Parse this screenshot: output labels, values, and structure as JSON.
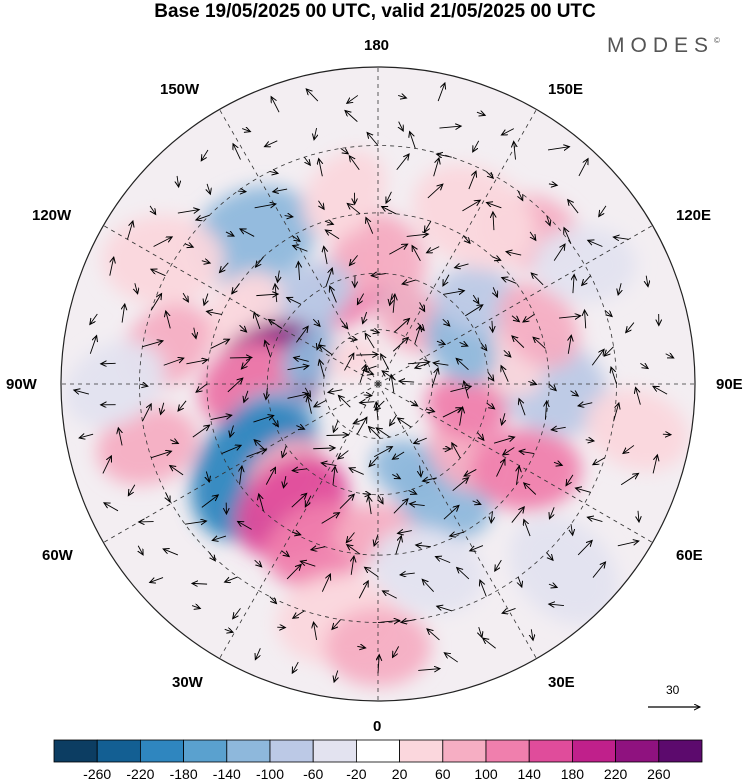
{
  "title": "Base 19/05/2025 00 UTC, valid 21/05/2025 00 UTC",
  "brand": "MODES",
  "brand_mark": "©",
  "lon_labels": {
    "n180": "180",
    "w150": "150W",
    "e150": "150E",
    "w120": "120W",
    "e120": "120E",
    "w90": "90W",
    "e90": "90E",
    "w60": "60W",
    "e60": "60E",
    "w30": "30W",
    "e30": "30E",
    "s0": "0"
  },
  "reference_vector": {
    "label": "30"
  },
  "colorbar": {
    "ticks": [
      "-260",
      "-220",
      "-180",
      "-140",
      "-100",
      "-60",
      "-20",
      "20",
      "60",
      "100",
      "140",
      "180",
      "220",
      "260"
    ],
    "colors": [
      "#0c3d62",
      "#135f93",
      "#2f86bf",
      "#5aa1cf",
      "#8eb8dc",
      "#bcc9e6",
      "#e3e3f0",
      "#ffffff",
      "#fbd7dd",
      "#f6aec3",
      "#f07fad",
      "#e04c9b",
      "#c0208b",
      "#8f127f",
      "#5c0a6d"
    ]
  },
  "anomaly_cells": [
    {
      "lon": 163,
      "lat": 67,
      "v": -160,
      "r": 22
    },
    {
      "lon": 150,
      "lat": 70,
      "v": 60,
      "r": 30
    },
    {
      "lon": 175,
      "lat": 55,
      "v": 80,
      "r": 30
    },
    {
      "lon": -160,
      "lat": 63,
      "v": 120,
      "r": 32
    },
    {
      "lon": -175,
      "lat": 55,
      "v": 60,
      "r": 30
    },
    {
      "lon": 135,
      "lat": 35,
      "v": 60,
      "r": 30
    },
    {
      "lon": -140,
      "lat": 40,
      "v": -140,
      "r": 40
    },
    {
      "lon": -130,
      "lat": 60,
      "v": -120,
      "r": 30
    },
    {
      "lon": -145,
      "lat": 60,
      "v": -100,
      "r": 28
    },
    {
      "lon": -120,
      "lat": 28,
      "v": 40,
      "r": 35
    },
    {
      "lon": -118,
      "lat": 50,
      "v": 50,
      "r": 30
    },
    {
      "lon": -100,
      "lat": 35,
      "v": 80,
      "r": 30
    },
    {
      "lon": -95,
      "lat": 60,
      "v": 220,
      "r": 45
    },
    {
      "lon": -90,
      "lat": 55,
      "v": 120,
      "r": 35
    },
    {
      "lon": -70,
      "lat": 60,
      "v": -140,
      "r": 30
    },
    {
      "lon": -110,
      "lat": 70,
      "v": -120,
      "r": 24
    },
    {
      "lon": -135,
      "lat": 80,
      "v": 40,
      "r": 22
    },
    {
      "lon": -55,
      "lat": 50,
      "v": -200,
      "r": 50
    },
    {
      "lon": -45,
      "lat": 55,
      "v": 60,
      "r": 30
    },
    {
      "lon": -35,
      "lat": 50,
      "v": 140,
      "r": 40
    },
    {
      "lon": -20,
      "lat": 45,
      "v": 100,
      "r": 35
    },
    {
      "lon": -10,
      "lat": 30,
      "v": 40,
      "r": 35
    },
    {
      "lon": -75,
      "lat": 30,
      "v": 80,
      "r": 30
    },
    {
      "lon": 0,
      "lat": 50,
      "v": 60,
      "r": 28
    },
    {
      "lon": 20,
      "lat": 65,
      "v": -120,
      "r": 28
    },
    {
      "lon": 30,
      "lat": 55,
      "v": -140,
      "r": 35
    },
    {
      "lon": 15,
      "lat": 40,
      "v": -40,
      "r": 35
    },
    {
      "lon": 50,
      "lat": 60,
      "v": 80,
      "r": 28
    },
    {
      "lon": 60,
      "lat": 45,
      "v": 120,
      "r": 35
    },
    {
      "lon": 90,
      "lat": 45,
      "v": -100,
      "r": 40
    },
    {
      "lon": 100,
      "lat": 55,
      "v": 40,
      "r": 28
    },
    {
      "lon": 75,
      "lat": 65,
      "v": 100,
      "r": 30
    },
    {
      "lon": 115,
      "lat": 65,
      "v": -140,
      "r": 30
    },
    {
      "lon": 130,
      "lat": 55,
      "v": -100,
      "r": 30
    },
    {
      "lon": 110,
      "lat": 45,
      "v": 60,
      "r": 30
    },
    {
      "lon": 120,
      "lat": 30,
      "v": -40,
      "r": 30
    },
    {
      "lon": 150,
      "lat": 40,
      "v": 20,
      "r": 40
    },
    {
      "lon": -170,
      "lat": 40,
      "v": 40,
      "r": 30
    },
    {
      "lon": -90,
      "lat": 25,
      "v": -40,
      "r": 30
    },
    {
      "lon": 45,
      "lat": 25,
      "v": -40,
      "r": 35
    },
    {
      "lon": 80,
      "lat": 25,
      "v": 40,
      "r": 30
    },
    {
      "lon": 0,
      "lat": 25,
      "v": 60,
      "r": 30
    }
  ]
}
